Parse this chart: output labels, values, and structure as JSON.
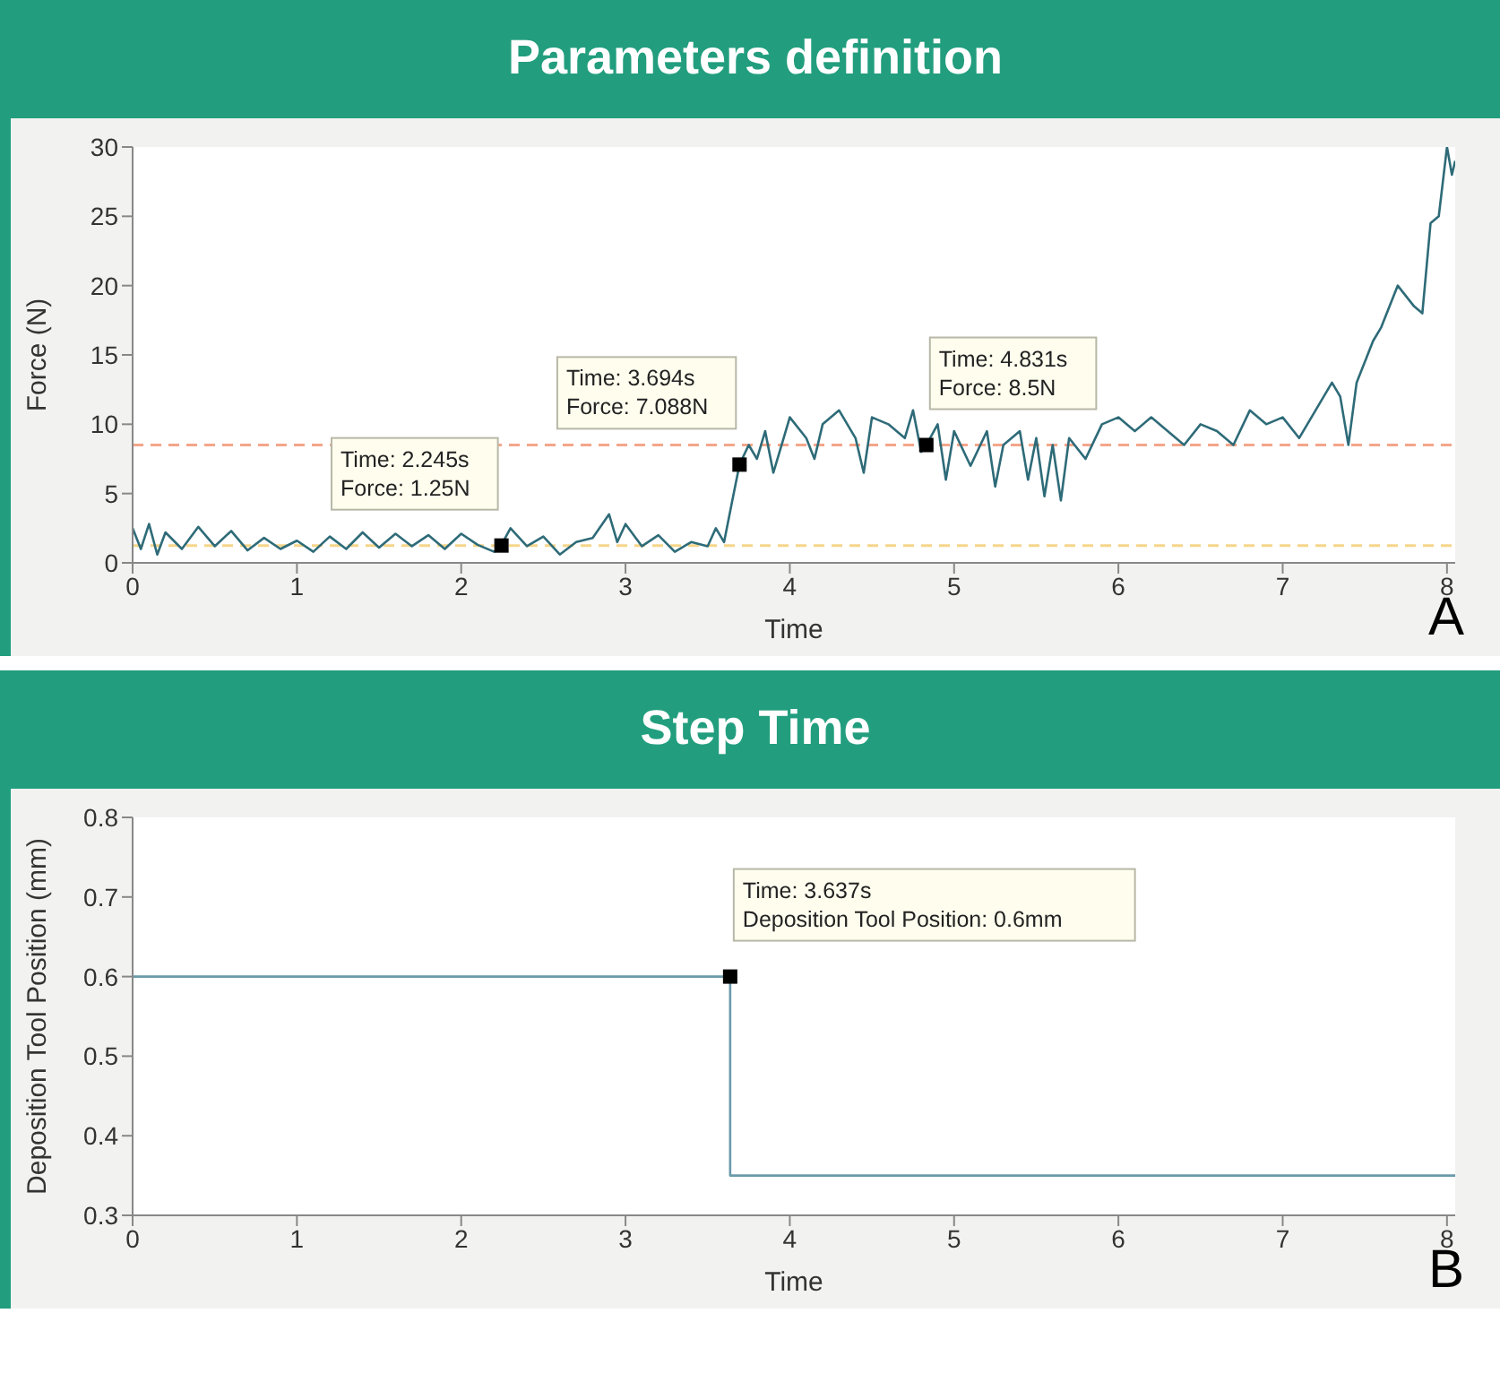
{
  "chart_data": [
    {
      "type": "line",
      "title": "Parameters definition",
      "xlabel": "Time",
      "ylabel": "Force (N)",
      "color": "#2e6b78",
      "x": [
        0,
        0.05,
        0.1,
        0.15,
        0.2,
        0.3,
        0.4,
        0.5,
        0.6,
        0.7,
        0.8,
        0.9,
        1.0,
        1.1,
        1.2,
        1.3,
        1.4,
        1.5,
        1.6,
        1.7,
        1.8,
        1.9,
        2.0,
        2.1,
        2.2,
        2.245,
        2.3,
        2.4,
        2.5,
        2.6,
        2.7,
        2.8,
        2.9,
        2.95,
        3.0,
        3.1,
        3.2,
        3.3,
        3.4,
        3.5,
        3.55,
        3.6,
        3.65,
        3.694,
        3.75,
        3.8,
        3.85,
        3.9,
        3.95,
        4.0,
        4.1,
        4.15,
        4.2,
        4.3,
        4.4,
        4.45,
        4.5,
        4.6,
        4.7,
        4.75,
        4.8,
        4.831,
        4.9,
        4.95,
        5.0,
        5.1,
        5.2,
        5.25,
        5.3,
        5.4,
        5.45,
        5.5,
        5.55,
        5.6,
        5.65,
        5.7,
        5.8,
        5.9,
        6.0,
        6.1,
        6.2,
        6.3,
        6.4,
        6.5,
        6.6,
        6.7,
        6.8,
        6.9,
        7.0,
        7.1,
        7.2,
        7.3,
        7.35,
        7.4,
        7.45,
        7.55,
        7.6,
        7.7,
        7.8,
        7.85,
        7.9,
        7.95,
        8.0,
        8.03,
        8.05
      ],
      "values": [
        2.5,
        1,
        2.8,
        0.6,
        2.2,
        1,
        2.6,
        1.2,
        2.3,
        0.9,
        1.8,
        1,
        1.6,
        0.8,
        1.9,
        1,
        2.2,
        1.1,
        2.1,
        1.2,
        2,
        1,
        2.1,
        1.3,
        0.8,
        1.3,
        2.5,
        1.2,
        1.9,
        0.6,
        1.5,
        1.8,
        3.5,
        1.5,
        2.8,
        1.2,
        2,
        0.8,
        1.5,
        1.2,
        2.5,
        1.5,
        4.5,
        7.1,
        8.5,
        7.5,
        9.5,
        6.5,
        8.5,
        10.5,
        9,
        7.5,
        10,
        11,
        9,
        6.5,
        10.5,
        10,
        9,
        11,
        8,
        8.5,
        10,
        6,
        9.5,
        7,
        9.5,
        5.5,
        8.5,
        9.5,
        6,
        9,
        4.8,
        8.5,
        4.5,
        9,
        7.5,
        10,
        10.5,
        9.5,
        10.5,
        9.5,
        8.5,
        10,
        9.5,
        8.5,
        11,
        10,
        10.5,
        9,
        11,
        13,
        12,
        8.5,
        13,
        16,
        17,
        20,
        18.5,
        18,
        24.5,
        25,
        30,
        28,
        29
      ],
      "xlim": [
        0,
        8.05
      ],
      "xticks": [
        0,
        1,
        2,
        3,
        4,
        5,
        6,
        7,
        8
      ],
      "ylim": [
        0,
        30
      ],
      "yticks": [
        0,
        5,
        10,
        15,
        20,
        25,
        30
      ],
      "grid": false,
      "ref_lines": [
        {
          "axis": "y",
          "value": 8.5,
          "color": "#f4a58a",
          "line_style": "dashed"
        },
        {
          "axis": "y",
          "value": 1.25,
          "color": "#f6d58a",
          "line_style": "dashed"
        }
      ],
      "annotations": [
        {
          "text": "Time: 2.245s\nForce: 1.25N",
          "x": 2.245,
          "y": 1.25
        },
        {
          "text": "Time: 3.694s\nForce: 7.088N",
          "x": 3.694,
          "y": 7.088
        },
        {
          "text": "Time: 4.831s\nForce: 8.5N",
          "x": 4.831,
          "y": 8.5
        },
        "A"
      ]
    },
    {
      "type": "step",
      "title": "Step Time",
      "xlabel": "Time",
      "ylabel": "Deposition Tool Position (mm)",
      "color": "#6a9aaa",
      "x": [
        0,
        3.637,
        8.05
      ],
      "values": [
        0.6,
        0.35,
        0.35
      ],
      "xlim": [
        0,
        8.05
      ],
      "xticks": [
        0,
        1,
        2,
        3,
        4,
        5,
        6,
        7,
        8
      ],
      "ylim": [
        0.3,
        0.8
      ],
      "yticks": [
        0.3,
        0.4,
        0.5,
        0.6,
        0.7,
        0.8
      ],
      "grid": false,
      "annotations": [
        {
          "text": "Time: 3.637s\nDeposition Tool Position: 0.6mm",
          "x": 3.637,
          "y": 0.6
        },
        "B"
      ]
    }
  ]
}
